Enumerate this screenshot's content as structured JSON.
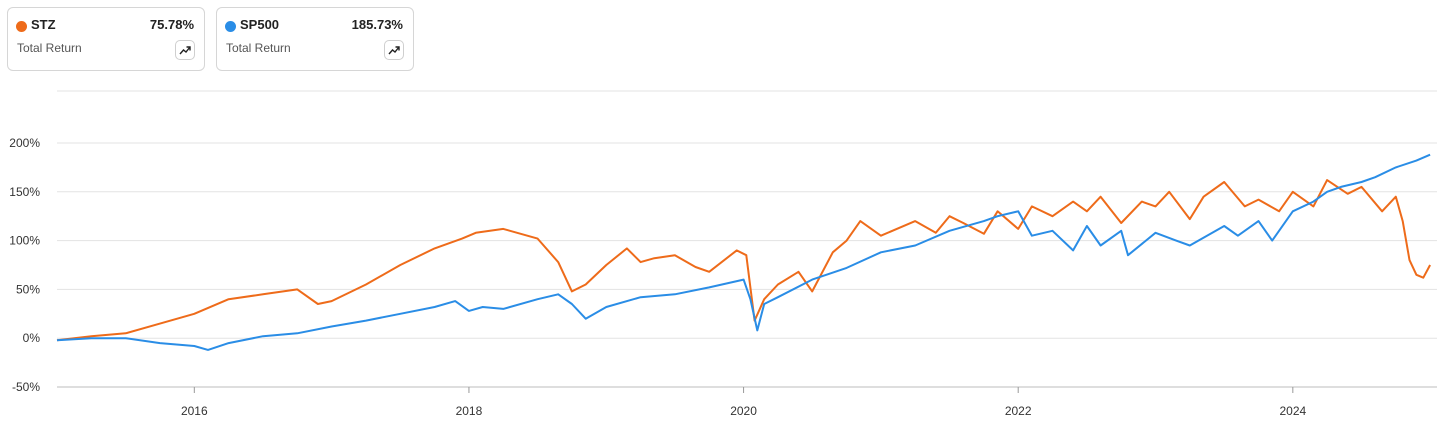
{
  "legend": [
    {
      "ticker": "STZ",
      "return": "75.78%",
      "label": "Total Return",
      "color": "#ee6b1a",
      "icon": "trend-up-icon"
    },
    {
      "ticker": "SP500",
      "return": "185.73%",
      "label": "Total Return",
      "color": "#2a8de6",
      "icon": "trend-up-icon"
    }
  ],
  "chart_data": {
    "type": "line",
    "ylabel": "",
    "xlabel": "",
    "y_unit": "%",
    "ylim": [
      -50,
      200
    ],
    "xlim": [
      2015.0,
      2025.05
    ],
    "y_ticks": [
      200,
      150,
      100,
      50,
      0,
      -50
    ],
    "y_tick_labels": [
      "200%",
      "150%",
      "100%",
      "50%",
      "0%",
      "-50%"
    ],
    "x_ticks": [
      2016,
      2018,
      2020,
      2022,
      2024
    ],
    "x_tick_labels": [
      "2016",
      "2018",
      "2020",
      "2022",
      "2024"
    ],
    "grid": true,
    "series": [
      {
        "name": "STZ",
        "color": "#ee6b1a",
        "x": [
          2015.0,
          2015.25,
          2015.5,
          2015.75,
          2016.0,
          2016.25,
          2016.5,
          2016.75,
          2016.9,
          2017.0,
          2017.25,
          2017.5,
          2017.75,
          2017.95,
          2018.05,
          2018.25,
          2018.5,
          2018.65,
          2018.75,
          2018.85,
          2019.0,
          2019.15,
          2019.25,
          2019.35,
          2019.5,
          2019.65,
          2019.75,
          2019.95,
          2020.02,
          2020.08,
          2020.15,
          2020.25,
          2020.4,
          2020.5,
          2020.65,
          2020.75,
          2020.85,
          2021.0,
          2021.25,
          2021.4,
          2021.5,
          2021.6,
          2021.75,
          2021.85,
          2022.0,
          2022.1,
          2022.25,
          2022.4,
          2022.5,
          2022.6,
          2022.75,
          2022.9,
          2023.0,
          2023.1,
          2023.25,
          2023.35,
          2023.5,
          2023.65,
          2023.75,
          2023.9,
          2024.0,
          2024.15,
          2024.25,
          2024.4,
          2024.5,
          2024.65,
          2024.75,
          2024.8,
          2024.85,
          2024.9,
          2024.95,
          2025.0
        ],
        "values": [
          -2,
          2,
          5,
          15,
          25,
          40,
          45,
          50,
          35,
          38,
          55,
          75,
          92,
          102,
          108,
          112,
          102,
          78,
          48,
          55,
          75,
          92,
          78,
          82,
          85,
          73,
          68,
          90,
          85,
          18,
          40,
          55,
          68,
          48,
          88,
          100,
          120,
          105,
          120,
          108,
          125,
          118,
          107,
          130,
          112,
          135,
          125,
          140,
          130,
          145,
          118,
          140,
          135,
          150,
          122,
          145,
          160,
          135,
          142,
          130,
          150,
          135,
          162,
          148,
          155,
          130,
          145,
          120,
          80,
          65,
          62,
          75
        ]
      },
      {
        "name": "SP500",
        "color": "#2a8de6",
        "x": [
          2015.0,
          2015.25,
          2015.5,
          2015.75,
          2016.0,
          2016.1,
          2016.25,
          2016.5,
          2016.75,
          2017.0,
          2017.25,
          2017.5,
          2017.75,
          2017.9,
          2018.0,
          2018.1,
          2018.25,
          2018.5,
          2018.65,
          2018.75,
          2018.85,
          2019.0,
          2019.25,
          2019.5,
          2019.75,
          2020.0,
          2020.05,
          2020.1,
          2020.15,
          2020.25,
          2020.5,
          2020.75,
          2021.0,
          2021.25,
          2021.5,
          2021.75,
          2021.85,
          2022.0,
          2022.1,
          2022.25,
          2022.4,
          2022.5,
          2022.6,
          2022.75,
          2022.8,
          2023.0,
          2023.15,
          2023.25,
          2023.5,
          2023.6,
          2023.75,
          2023.85,
          2024.0,
          2024.15,
          2024.25,
          2024.35,
          2024.5,
          2024.6,
          2024.75,
          2024.9,
          2025.0
        ],
        "values": [
          -2,
          0,
          0,
          -5,
          -8,
          -12,
          -5,
          2,
          5,
          12,
          18,
          25,
          32,
          38,
          28,
          32,
          30,
          40,
          45,
          35,
          20,
          32,
          42,
          45,
          52,
          60,
          40,
          8,
          35,
          42,
          60,
          72,
          88,
          95,
          110,
          120,
          125,
          130,
          105,
          110,
          90,
          115,
          95,
          110,
          85,
          108,
          100,
          95,
          115,
          105,
          120,
          100,
          130,
          140,
          150,
          155,
          160,
          165,
          175,
          182,
          188
        ]
      }
    ]
  }
}
